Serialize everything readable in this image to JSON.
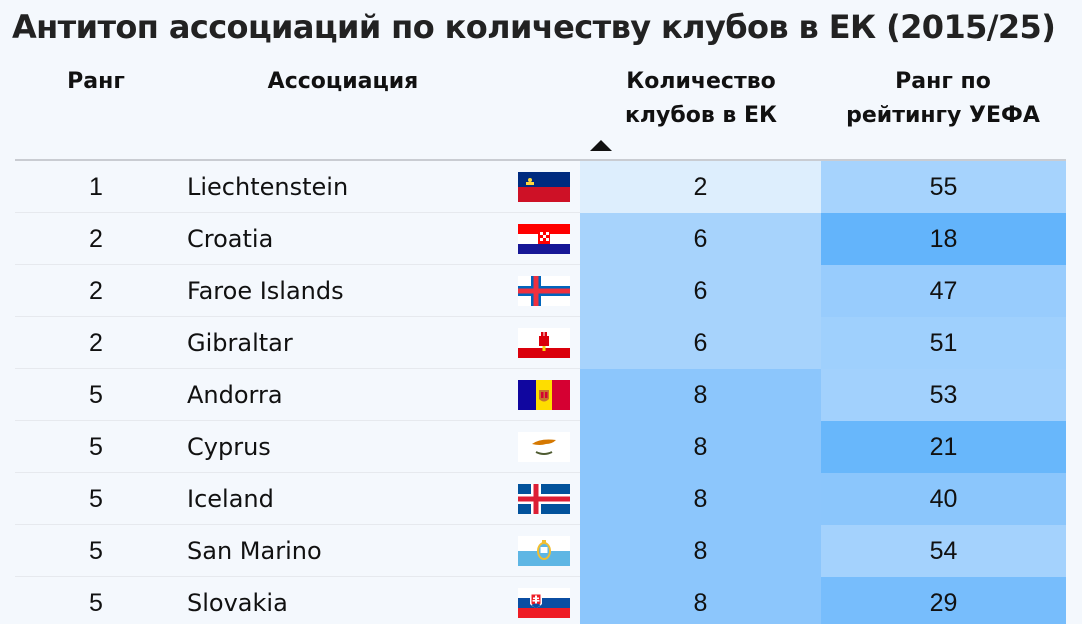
{
  "title": "Антитоп ассоциаций по количеству клубов в ЕК (2015/25)",
  "headers": {
    "rank": "Ранг",
    "association": "Ассоциация",
    "clubs_line1": "Количество",
    "clubs_line2": "клубов в ЕК",
    "uefa_line1": "Ранг по",
    "uefa_line2": "рейтингу УЕФА"
  },
  "sort": {
    "column": "clubs",
    "direction": "ascending"
  },
  "colors": {
    "clubs_scale": [
      "#ddeefd",
      "#8cc6fc"
    ],
    "uefa_scale": [
      "#63b4fb",
      "#a6d3fd"
    ]
  },
  "chart_data": {
    "type": "table",
    "columns": [
      "Ранг",
      "Ассоциация",
      "Количество клубов в ЕК",
      "Ранг по рейтингу УЕФА"
    ],
    "rows": [
      {
        "rank": "1",
        "name": "Liechtenstein",
        "flag": "liechtenstein-flag-icon",
        "clubs": 2,
        "uefa": 55
      },
      {
        "rank": "2",
        "name": "Croatia",
        "flag": "croatia-flag-icon",
        "clubs": 6,
        "uefa": 18
      },
      {
        "rank": "2",
        "name": "Faroe Islands",
        "flag": "faroe-islands-flag-icon",
        "clubs": 6,
        "uefa": 47
      },
      {
        "rank": "2",
        "name": "Gibraltar",
        "flag": "gibraltar-flag-icon",
        "clubs": 6,
        "uefa": 51
      },
      {
        "rank": "5",
        "name": "Andorra",
        "flag": "andorra-flag-icon",
        "clubs": 8,
        "uefa": 53
      },
      {
        "rank": "5",
        "name": "Cyprus",
        "flag": "cyprus-flag-icon",
        "clubs": 8,
        "uefa": 21
      },
      {
        "rank": "5",
        "name": "Iceland",
        "flag": "iceland-flag-icon",
        "clubs": 8,
        "uefa": 40
      },
      {
        "rank": "5",
        "name": "San Marino",
        "flag": "san-marino-flag-icon",
        "clubs": 8,
        "uefa": 54
      },
      {
        "rank": "5",
        "name": "Slovakia",
        "flag": "slovakia-flag-icon",
        "clubs": 8,
        "uefa": 29
      }
    ]
  }
}
